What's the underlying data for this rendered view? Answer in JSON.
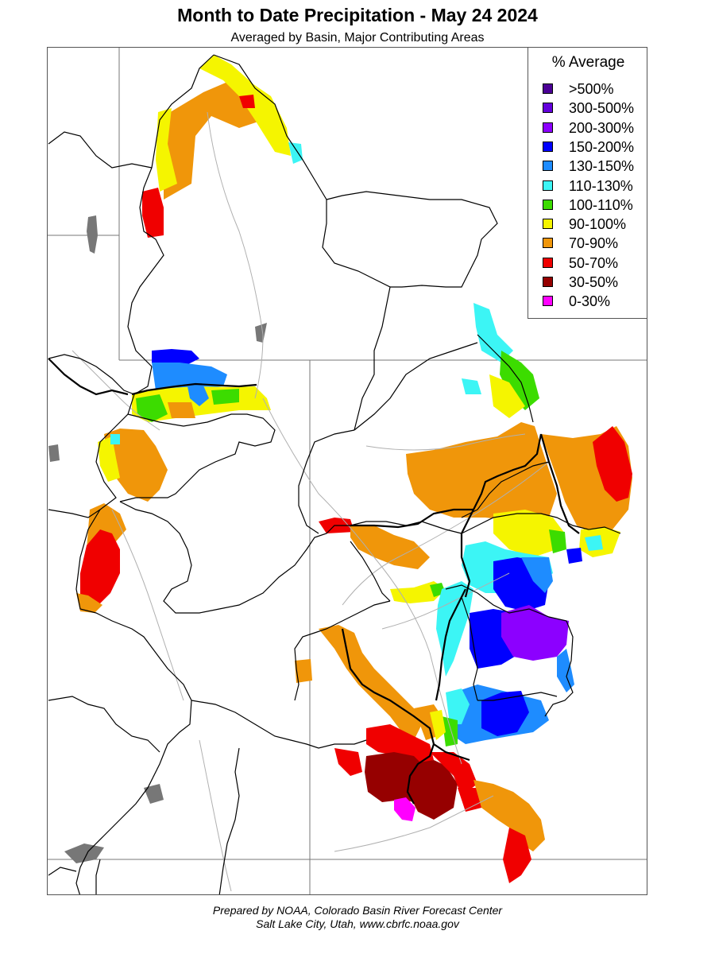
{
  "title": "Month to Date Precipitation - May 24 2024",
  "subtitle": "Averaged by Basin, Major Contributing Areas",
  "legend": {
    "title": "% Average",
    "items": [
      {
        "label": ">500%",
        "color": "#4b0096"
      },
      {
        "label": "300-500%",
        "color": "#6400dc"
      },
      {
        "label": "200-300%",
        "color": "#8c00ff"
      },
      {
        "label": "150-200%",
        "color": "#0000ff"
      },
      {
        "label": "130-150%",
        "color": "#1e8cff"
      },
      {
        "label": "110-130%",
        "color": "#3cf5f5"
      },
      {
        "label": "100-110%",
        "color": "#3cdc00"
      },
      {
        "label": "90-100%",
        "color": "#f5f500"
      },
      {
        "label": "70-90%",
        "color": "#f0960a"
      },
      {
        "label": "50-70%",
        "color": "#f00000"
      },
      {
        "label": "30-50%",
        "color": "#960000"
      },
      {
        "label": "0-30%",
        "color": "#ff00ff"
      }
    ]
  },
  "footer": {
    "line1": "Prepared by NOAA, Colorado Basin River Forecast Center",
    "line2": "Salt Lake City, Utah, www.cbrfc.noaa.gov"
  }
}
